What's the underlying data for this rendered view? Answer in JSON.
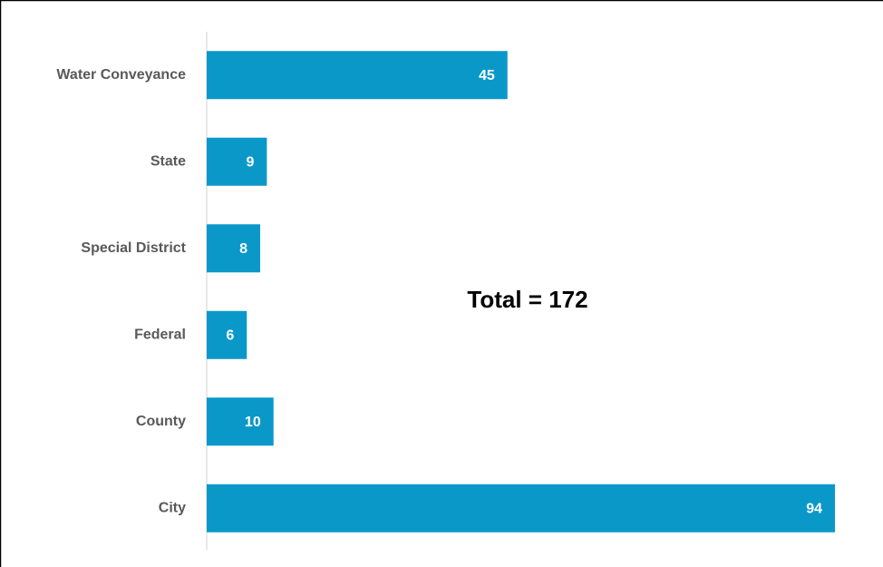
{
  "chart_data": {
    "type": "bar",
    "orientation": "horizontal",
    "categories": [
      "Water Conveyance",
      "State",
      "Special District",
      "Federal",
      "County",
      "City"
    ],
    "values": [
      45,
      9,
      8,
      6,
      10,
      94
    ],
    "color": "#0a98c9",
    "annotation": "Total = 172"
  }
}
